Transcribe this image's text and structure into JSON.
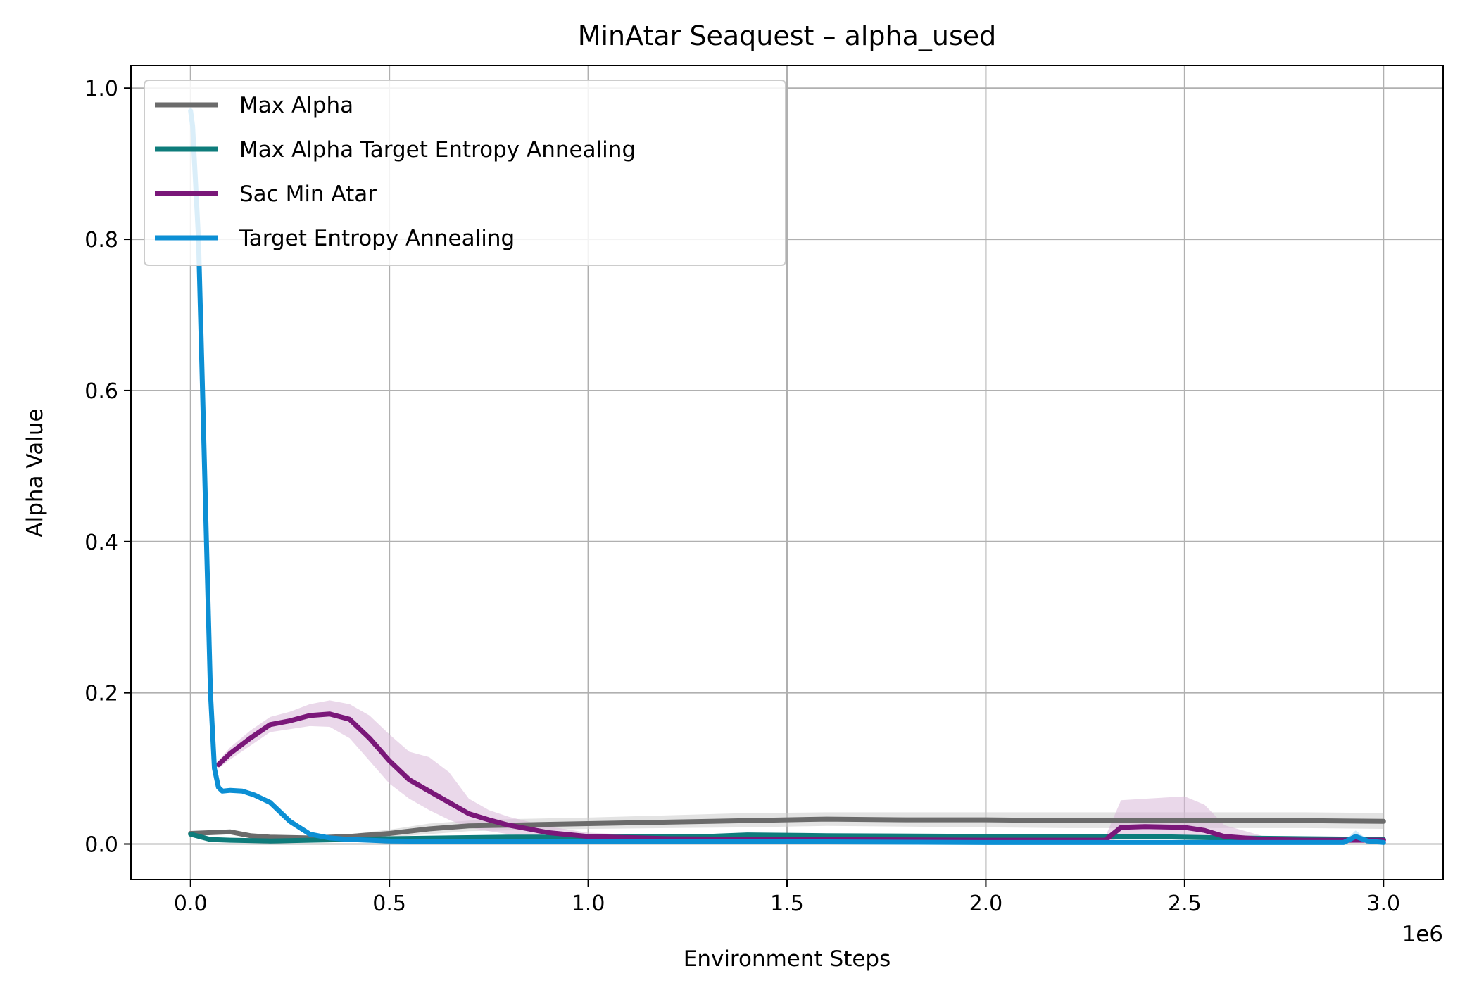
{
  "chart_data": {
    "type": "line",
    "title": "MinAtar Seaquest – alpha_used",
    "xlabel": "Environment Steps",
    "ylabel": "Alpha Value",
    "x_offset_label": "1e6",
    "x_scale_multiplier": 1000000,
    "xlim": [
      -0.15,
      3.15
    ],
    "ylim": [
      -0.047,
      1.03
    ],
    "x_ticks": [
      0.0,
      0.5,
      1.0,
      1.5,
      2.0,
      2.5,
      3.0
    ],
    "x_tick_labels": [
      "0.0",
      "0.5",
      "1.0",
      "1.5",
      "2.0",
      "2.5",
      "3.0"
    ],
    "y_ticks": [
      0.0,
      0.2,
      0.4,
      0.6,
      0.8,
      1.0
    ],
    "y_tick_labels": [
      "0.0",
      "0.2",
      "0.4",
      "0.6",
      "0.8",
      "1.0"
    ],
    "grid": true,
    "legend_position": "top-left",
    "series": [
      {
        "name": "Max Alpha",
        "color": "#6b6b6b",
        "band_color": "#cccccc",
        "x": [
          0.0,
          0.05,
          0.1,
          0.15,
          0.2,
          0.3,
          0.4,
          0.5,
          0.6,
          0.7,
          0.8,
          1.0,
          1.2,
          1.4,
          1.6,
          1.8,
          2.0,
          2.2,
          2.4,
          2.6,
          2.8,
          3.0
        ],
        "y": [
          0.014,
          0.015,
          0.016,
          0.011,
          0.009,
          0.008,
          0.01,
          0.014,
          0.02,
          0.024,
          0.025,
          0.027,
          0.029,
          0.031,
          0.033,
          0.032,
          0.032,
          0.031,
          0.031,
          0.031,
          0.031,
          0.03
        ],
        "y_low": [
          0.011,
          0.012,
          0.013,
          0.008,
          0.006,
          0.005,
          0.007,
          0.009,
          0.013,
          0.017,
          0.018,
          0.02,
          0.021,
          0.022,
          0.024,
          0.023,
          0.022,
          0.021,
          0.021,
          0.021,
          0.021,
          0.02
        ],
        "y_high": [
          0.017,
          0.018,
          0.019,
          0.014,
          0.012,
          0.011,
          0.013,
          0.019,
          0.027,
          0.031,
          0.033,
          0.035,
          0.038,
          0.041,
          0.042,
          0.042,
          0.042,
          0.042,
          0.042,
          0.042,
          0.042,
          0.041
        ]
      },
      {
        "name": "Max Alpha Target Entropy Annealing",
        "color": "#0e7c7b",
        "band_color": "#9fcfcf",
        "x": [
          0.0,
          0.05,
          0.1,
          0.2,
          0.3,
          0.5,
          0.8,
          1.0,
          1.3,
          1.4,
          1.6,
          2.0,
          2.4,
          2.6,
          2.8,
          3.0
        ],
        "y": [
          0.013,
          0.006,
          0.005,
          0.004,
          0.005,
          0.007,
          0.009,
          0.009,
          0.01,
          0.012,
          0.011,
          0.01,
          0.01,
          0.008,
          0.007,
          0.006
        ],
        "y_low": [
          0.011,
          0.004,
          0.003,
          0.002,
          0.003,
          0.005,
          0.006,
          0.006,
          0.007,
          0.009,
          0.008,
          0.007,
          0.007,
          0.005,
          0.005,
          0.004
        ],
        "y_high": [
          0.015,
          0.008,
          0.007,
          0.006,
          0.007,
          0.009,
          0.012,
          0.012,
          0.013,
          0.015,
          0.014,
          0.013,
          0.013,
          0.011,
          0.009,
          0.008
        ]
      },
      {
        "name": "Sac Min Atar",
        "color": "#7a1779",
        "band_color": "#d9b8d8",
        "x": [
          0.07,
          0.1,
          0.15,
          0.2,
          0.25,
          0.3,
          0.35,
          0.4,
          0.45,
          0.5,
          0.55,
          0.6,
          0.65,
          0.7,
          0.75,
          0.8,
          0.9,
          1.0,
          1.2,
          1.5,
          2.0,
          2.3,
          2.34,
          2.4,
          2.5,
          2.55,
          2.6,
          2.7,
          2.8,
          3.0
        ],
        "y": [
          0.105,
          0.12,
          0.14,
          0.158,
          0.163,
          0.17,
          0.172,
          0.165,
          0.14,
          0.11,
          0.085,
          0.07,
          0.055,
          0.04,
          0.032,
          0.025,
          0.015,
          0.01,
          0.007,
          0.006,
          0.005,
          0.005,
          0.022,
          0.023,
          0.022,
          0.018,
          0.01,
          0.006,
          0.005,
          0.005
        ],
        "y_low": [
          0.1,
          0.112,
          0.13,
          0.148,
          0.152,
          0.156,
          0.155,
          0.14,
          0.11,
          0.08,
          0.06,
          0.045,
          0.032,
          0.022,
          0.017,
          0.013,
          0.008,
          0.006,
          0.004,
          0.003,
          0.002,
          0.002,
          0.008,
          0.01,
          0.009,
          0.008,
          0.005,
          0.003,
          0.002,
          0.002
        ],
        "y_high": [
          0.11,
          0.128,
          0.15,
          0.168,
          0.175,
          0.185,
          0.19,
          0.185,
          0.17,
          0.145,
          0.122,
          0.115,
          0.095,
          0.06,
          0.045,
          0.036,
          0.023,
          0.015,
          0.01,
          0.009,
          0.008,
          0.009,
          0.058,
          0.06,
          0.063,
          0.052,
          0.025,
          0.01,
          0.008,
          0.008
        ]
      },
      {
        "name": "Target Entropy Annealing",
        "color": "#0c8fd4",
        "band_color": "#a9d8f2",
        "x": [
          0.0,
          0.005,
          0.01,
          0.02,
          0.03,
          0.04,
          0.05,
          0.06,
          0.07,
          0.08,
          0.1,
          0.13,
          0.16,
          0.2,
          0.25,
          0.3,
          0.35,
          0.4,
          0.5,
          0.7,
          1.0,
          1.5,
          2.0,
          2.5,
          2.9,
          2.93,
          2.96,
          3.0
        ],
        "y": [
          0.97,
          0.95,
          0.9,
          0.8,
          0.6,
          0.4,
          0.2,
          0.1,
          0.075,
          0.07,
          0.071,
          0.07,
          0.065,
          0.055,
          0.03,
          0.013,
          0.008,
          0.006,
          0.004,
          0.003,
          0.003,
          0.003,
          0.002,
          0.002,
          0.002,
          0.01,
          0.004,
          0.002
        ],
        "y_low": [
          0.96,
          0.94,
          0.89,
          0.78,
          0.58,
          0.38,
          0.19,
          0.095,
          0.072,
          0.067,
          0.068,
          0.067,
          0.062,
          0.052,
          0.027,
          0.011,
          0.006,
          0.004,
          0.003,
          0.002,
          0.002,
          0.002,
          0.001,
          0.001,
          0.001,
          0.002,
          0.002,
          0.001
        ],
        "y_high": [
          0.98,
          0.96,
          0.91,
          0.82,
          0.62,
          0.42,
          0.21,
          0.105,
          0.078,
          0.073,
          0.074,
          0.073,
          0.068,
          0.058,
          0.033,
          0.015,
          0.01,
          0.008,
          0.005,
          0.004,
          0.004,
          0.004,
          0.003,
          0.003,
          0.003,
          0.018,
          0.006,
          0.003
        ]
      }
    ]
  }
}
